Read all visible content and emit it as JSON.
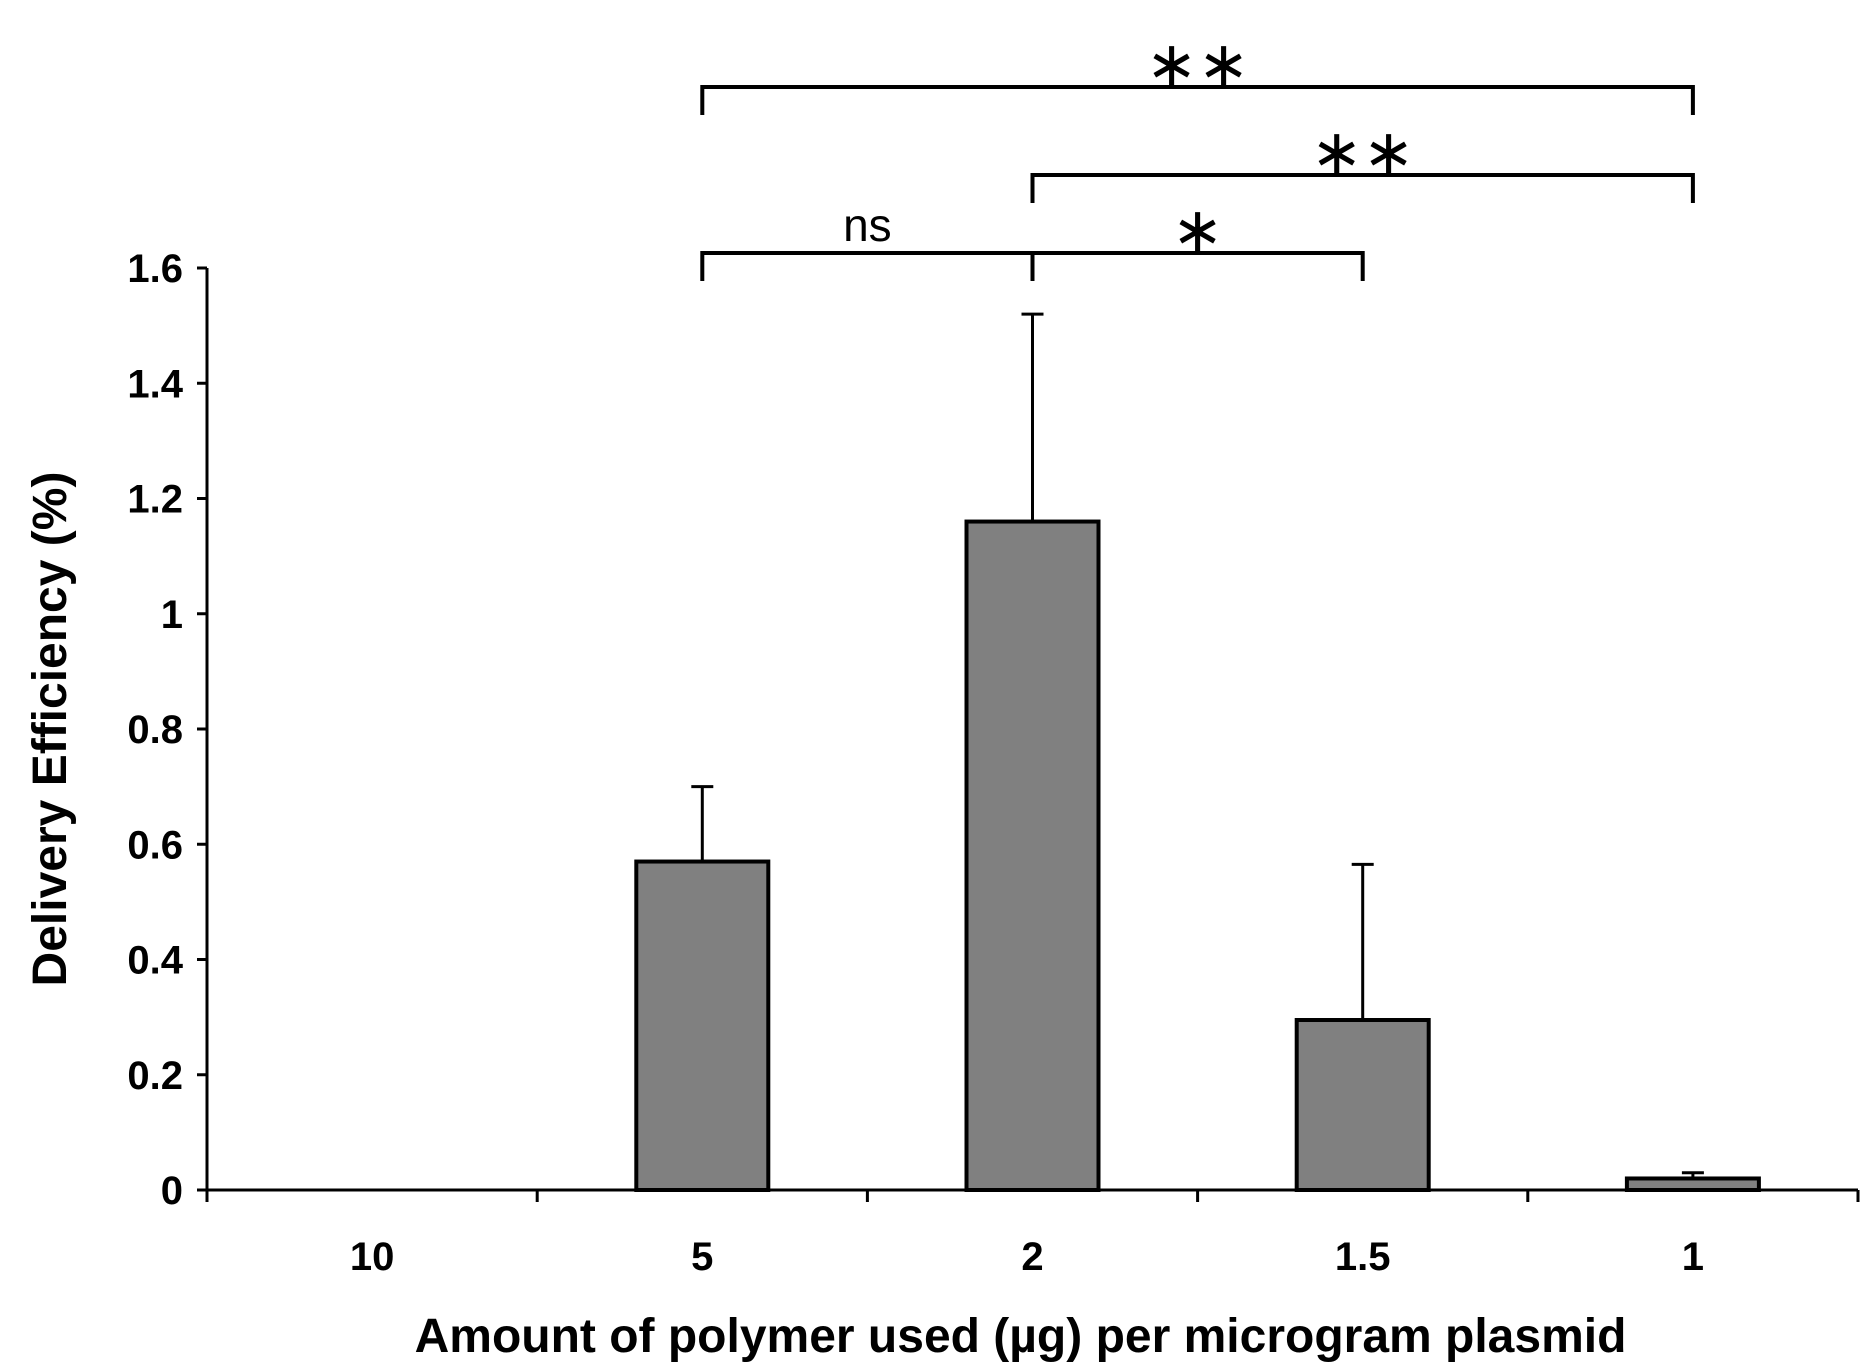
{
  "chart_data": {
    "type": "bar",
    "title": "",
    "xlabel": "Amount of polymer used (µg) per microgram plasmid",
    "ylabel": "Delivery Efficiency (%)",
    "categories": [
      "10",
      "5",
      "2",
      "1.5",
      "1"
    ],
    "values": [
      0,
      0.57,
      1.16,
      0.295,
      0.02
    ],
    "errors": [
      0,
      0.13,
      0.36,
      0.27,
      0.01
    ],
    "ylim": [
      0,
      1.6
    ],
    "yticks": [
      "0",
      "0.2",
      "0.4",
      "0.6",
      "0.8",
      "1",
      "1.2",
      "1.4",
      "1.6"
    ],
    "bar_color": "#808080",
    "grid": false,
    "legend": "none",
    "significance": [
      {
        "from": 1,
        "to": 2,
        "label": "ns"
      },
      {
        "from": 2,
        "to": 3,
        "label": "*"
      },
      {
        "from": 2,
        "to": 4,
        "label": "**"
      },
      {
        "from": 1,
        "to": 4,
        "label": "**"
      }
    ]
  }
}
